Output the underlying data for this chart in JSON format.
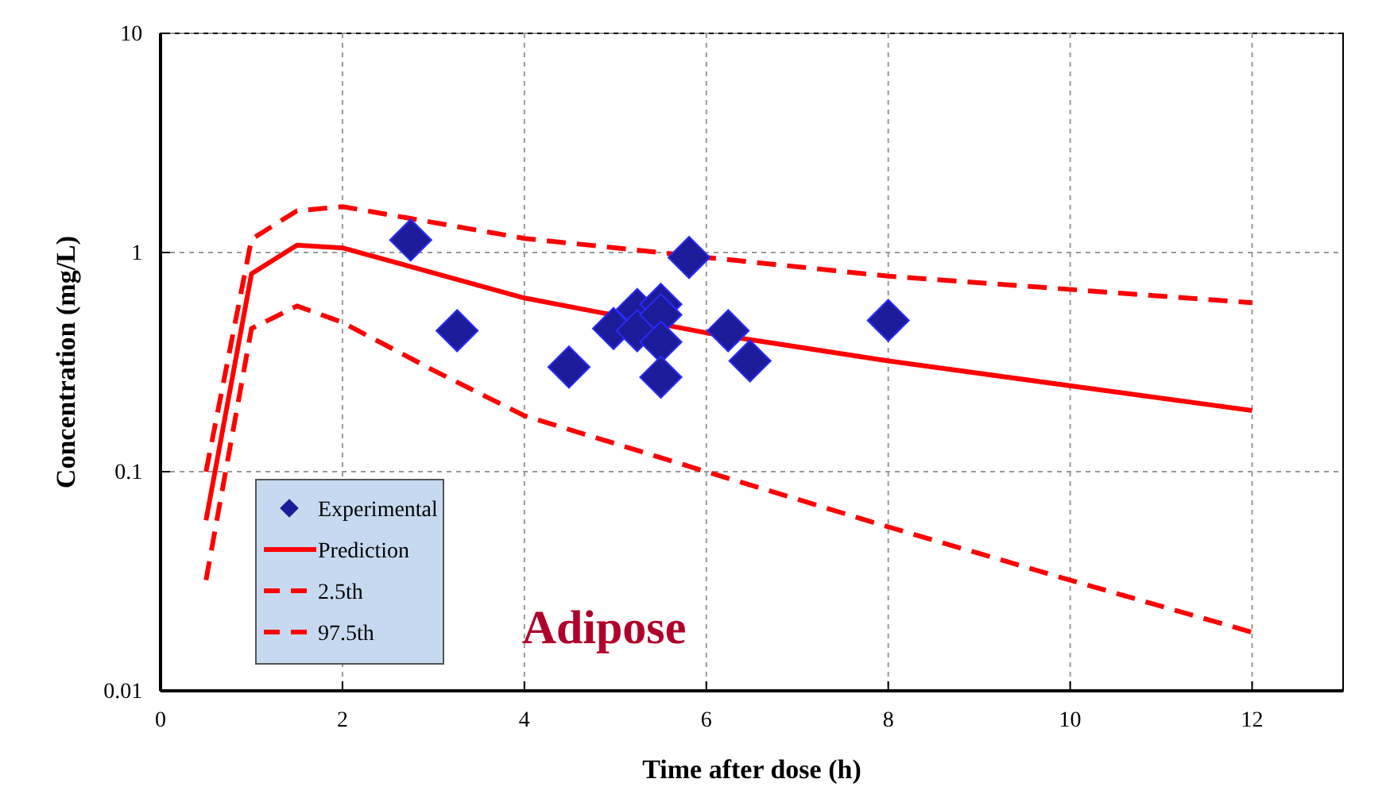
{
  "chart_data": {
    "type": "line",
    "xlabel": "Time after dose (h)",
    "ylabel": "Concentration (mg/L)",
    "xlim": [
      0,
      13
    ],
    "xticks": [
      0,
      2,
      4,
      6,
      8,
      10,
      12
    ],
    "ylim": [
      0.01,
      10
    ],
    "yticks": [
      0.01,
      0.1,
      1,
      10
    ],
    "log": "y",
    "grid": true,
    "legend": "bottom left",
    "annotations": [
      "Adipose"
    ],
    "series": [
      {
        "name": "Experimental",
        "type": "scatter",
        "marker": "diamond",
        "color": "#1c1c9a",
        "x": [
          2.75,
          3.26,
          4.49,
          4.98,
          5.24,
          5.24,
          5.5,
          5.5,
          5.5,
          5.5,
          5.81,
          6.24,
          6.48,
          8.0
        ],
        "values": [
          1.14,
          0.44,
          0.3,
          0.45,
          0.55,
          0.44,
          0.58,
          0.52,
          0.39,
          0.27,
          0.95,
          0.44,
          0.32,
          0.49
        ]
      },
      {
        "name": "Prediction",
        "line_style": "solid",
        "color": "#ff0000",
        "x": [
          0.5,
          1,
          1.5,
          2,
          4,
          6,
          8,
          12
        ],
        "values": [
          0.06,
          0.8,
          1.08,
          1.05,
          0.62,
          0.43,
          0.32,
          0.19
        ]
      },
      {
        "name": "2.5th",
        "type": "line",
        "line_style": "dashed",
        "color": "#ff0000",
        "x": [
          0.5,
          1,
          1.5,
          2,
          3,
          4,
          6,
          8,
          10,
          12
        ],
        "values": [
          0.032,
          0.45,
          0.57,
          0.48,
          0.29,
          0.18,
          0.1,
          0.056,
          0.032,
          0.0185
        ]
      },
      {
        "name": "97.5th",
        "type": "line",
        "line_style": "dashed",
        "color": "#ff0000",
        "x": [
          0.5,
          1,
          1.5,
          2,
          4,
          6,
          8,
          12
        ],
        "values": [
          0.1,
          1.15,
          1.55,
          1.62,
          1.16,
          0.95,
          0.78,
          0.59
        ]
      }
    ]
  }
}
